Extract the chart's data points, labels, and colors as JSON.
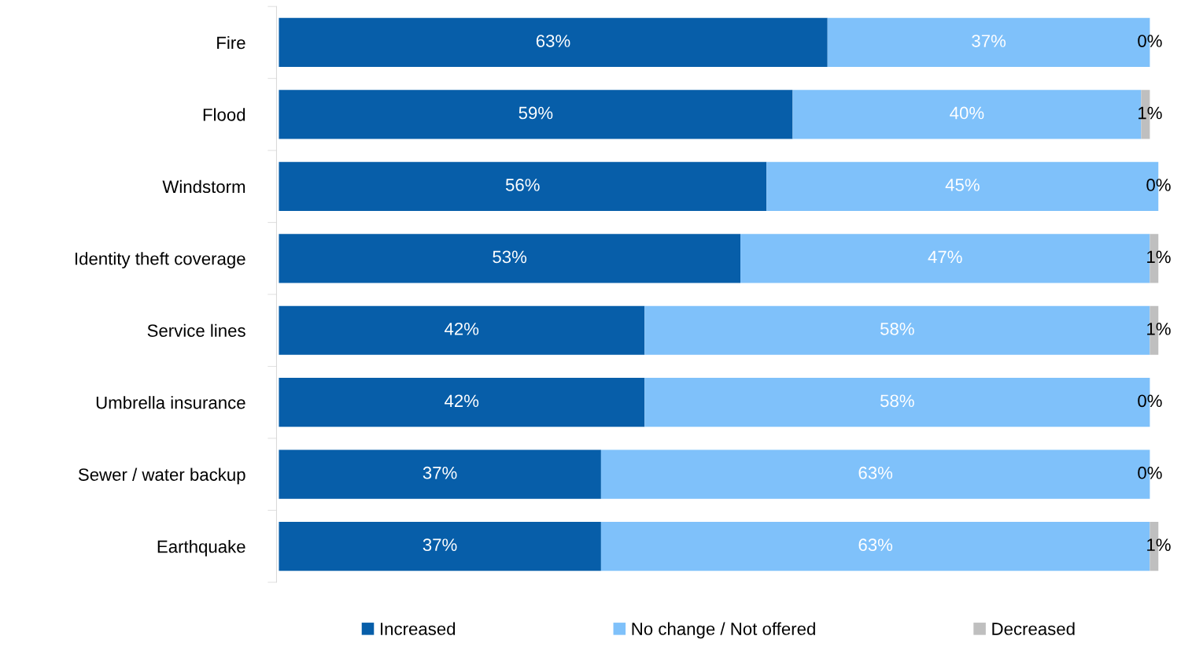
{
  "chart_data": {
    "type": "bar",
    "orientation": "horizontal",
    "stacked": true,
    "legend": "bottom",
    "grid": false,
    "categories": [
      "Fire",
      "Flood",
      "Windstorm",
      "Identity theft coverage",
      "Service lines",
      "Umbrella insurance",
      "Sewer / water backup",
      "Earthquake"
    ],
    "series": [
      {
        "name": "Increased",
        "color": "#075ea9",
        "values": [
          63,
          59,
          56,
          53,
          42,
          42,
          37,
          37
        ],
        "value_labels": [
          "63%",
          "59%",
          "56%",
          "53%",
          "42%",
          "42%",
          "37%",
          "37%"
        ]
      },
      {
        "name": "No change / Not offered",
        "color": "#7fc1fa",
        "values": [
          37,
          40,
          45,
          47,
          58,
          58,
          63,
          63
        ],
        "value_labels": [
          "37%",
          "40%",
          "45%",
          "47%",
          "58%",
          "58%",
          "63%",
          "63%"
        ]
      },
      {
        "name": "Decreased",
        "color": "#bfbfbf",
        "values": [
          0,
          1,
          0,
          1,
          1,
          0,
          0,
          1
        ],
        "value_labels": [
          "0%",
          "1%",
          "0%",
          "1%",
          "1%",
          "0%",
          "0%",
          "1%"
        ]
      }
    ]
  }
}
